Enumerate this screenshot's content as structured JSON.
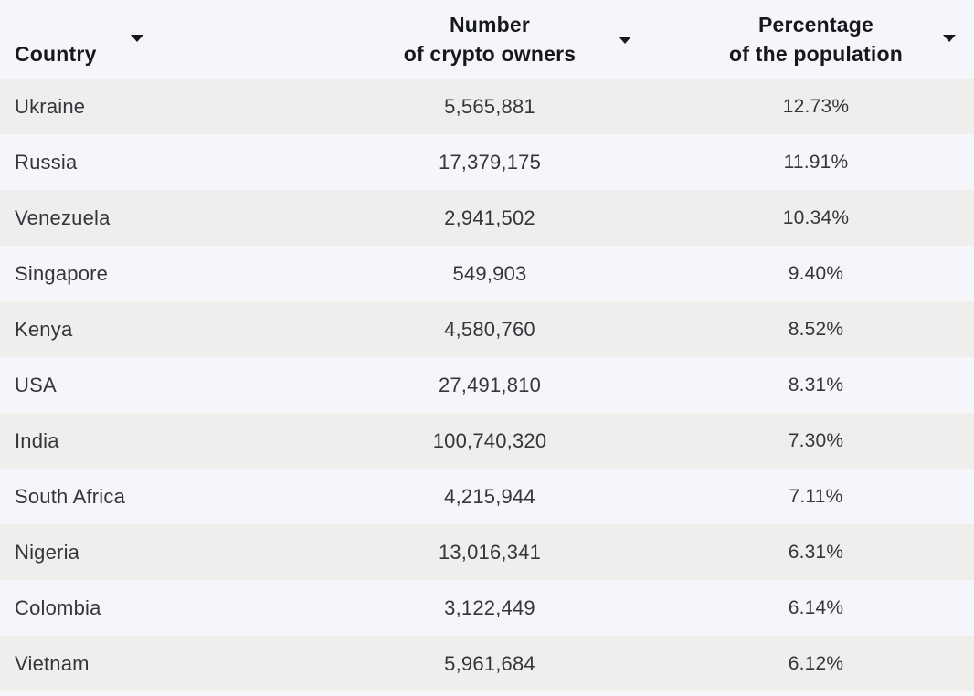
{
  "header": {
    "columns": [
      {
        "id": "country",
        "line1": "Country",
        "line2": ""
      },
      {
        "id": "owners",
        "line1": "Number",
        "line2": "of crypto owners"
      },
      {
        "id": "percentage",
        "line1": "Percentage",
        "line2": "of the population"
      }
    ],
    "sort_icon": "triangle-down"
  },
  "rows": [
    {
      "country": "Ukraine",
      "owners": "5,565,881",
      "percentage": "12.73%"
    },
    {
      "country": "Russia",
      "owners": "17,379,175",
      "percentage": "11.91%"
    },
    {
      "country": "Venezuela",
      "owners": "2,941,502",
      "percentage": "10.34%"
    },
    {
      "country": "Singapore",
      "owners": "549,903",
      "percentage": "9.40%"
    },
    {
      "country": "Kenya",
      "owners": "4,580,760",
      "percentage": "8.52%"
    },
    {
      "country": "USA",
      "owners": "27,491,810",
      "percentage": "8.31%"
    },
    {
      "country": "India",
      "owners": "100,740,320",
      "percentage": "7.30%"
    },
    {
      "country": "South Africa",
      "owners": "4,215,944",
      "percentage": "7.11%"
    },
    {
      "country": "Nigeria",
      "owners": "13,016,341",
      "percentage": "6.31%"
    },
    {
      "country": "Colombia",
      "owners": "3,122,449",
      "percentage": "6.14%"
    },
    {
      "country": "Vietnam",
      "owners": "5,961,684",
      "percentage": "6.12%"
    }
  ],
  "colors": {
    "page_background": "#f5f6fa",
    "row_stripe": "#eeeeed",
    "header_text": "#16171f",
    "body_text": "#35353d"
  },
  "chart_data": {
    "type": "table",
    "title": "",
    "columns": [
      "Country",
      "Number of crypto owners",
      "Percentage of the population"
    ],
    "records": [
      {
        "country": "Ukraine",
        "crypto_owners": 5565881,
        "percent_of_population": 12.73
      },
      {
        "country": "Russia",
        "crypto_owners": 17379175,
        "percent_of_population": 11.91
      },
      {
        "country": "Venezuela",
        "crypto_owners": 2941502,
        "percent_of_population": 10.34
      },
      {
        "country": "Singapore",
        "crypto_owners": 549903,
        "percent_of_population": 9.4
      },
      {
        "country": "Kenya",
        "crypto_owners": 4580760,
        "percent_of_population": 8.52
      },
      {
        "country": "USA",
        "crypto_owners": 27491810,
        "percent_of_population": 8.31
      },
      {
        "country": "India",
        "crypto_owners": 100740320,
        "percent_of_population": 7.3
      },
      {
        "country": "South Africa",
        "crypto_owners": 4215944,
        "percent_of_population": 7.11
      },
      {
        "country": "Nigeria",
        "crypto_owners": 13016341,
        "percent_of_population": 6.31
      },
      {
        "country": "Colombia",
        "crypto_owners": 3122449,
        "percent_of_population": 6.14
      },
      {
        "country": "Vietnam",
        "crypto_owners": 5961684,
        "percent_of_population": 6.12
      }
    ],
    "layout": {
      "striped_rows": true,
      "sortable_columns": true,
      "sort_indicator": "descending-triangle"
    }
  }
}
